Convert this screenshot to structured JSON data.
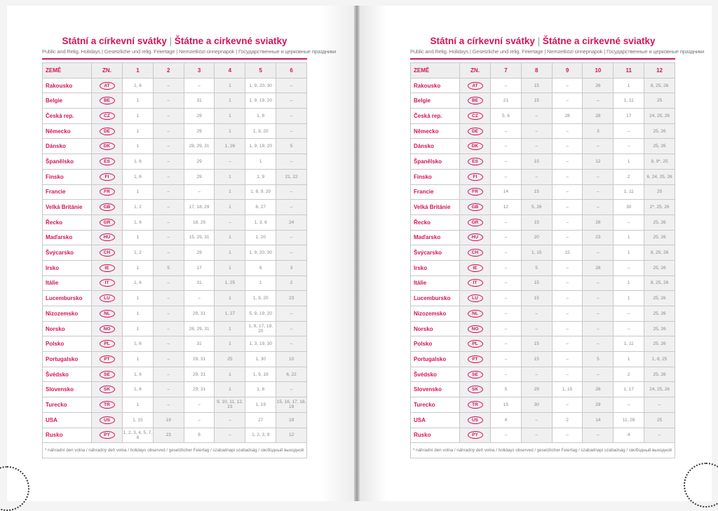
{
  "title_cz": "Státní a církevní svátky",
  "title_sk": "Štátne a cirkevné sviatky",
  "subtitle": "Public and Relig. Holidays | Gesetzliche und relig. Feiertage | Nemzetközi ünnepnapok | Государственные и церковные праздники",
  "footnote": "* náhradní den volna / náhradný deň volna / holidays observed / gesetzlicher Feiertag / szabadnapi szabadság / свободный выходной",
  "headers": {
    "country": "ZEMĚ",
    "code": "ZN."
  },
  "months_left": [
    "1",
    "2",
    "3",
    "4",
    "5",
    "6"
  ],
  "months_right": [
    "7",
    "8",
    "9",
    "10",
    "11",
    "12"
  ],
  "accent_color": "#d4145a",
  "countries": [
    {
      "name": "Rakousko",
      "code": "AT",
      "left": [
        "1, 6",
        "–",
        "–",
        "1",
        "1, 9, 20, 30",
        "–"
      ],
      "right": [
        "–",
        "15",
        "–",
        "26",
        "1",
        "8, 25, 26"
      ]
    },
    {
      "name": "Belgie",
      "code": "BE",
      "left": [
        "1",
        "–",
        "31",
        "1",
        "1, 9, 19, 20",
        "–"
      ],
      "right": [
        "21",
        "15",
        "–",
        "–",
        "1, 11",
        "25"
      ]
    },
    {
      "name": "Česká rep.",
      "code": "CZ",
      "left": [
        "1",
        "–",
        "29",
        "1",
        "1, 8",
        "–"
      ],
      "right": [
        "5, 6",
        "–",
        "28",
        "28",
        "17",
        "24, 25, 26"
      ]
    },
    {
      "name": "Německo",
      "code": "DE",
      "left": [
        "1",
        "–",
        "29",
        "1",
        "1, 9, 20",
        "–"
      ],
      "right": [
        "–",
        "–",
        "–",
        "3",
        "–",
        "25, 26"
      ]
    },
    {
      "name": "Dánsko",
      "code": "DK",
      "left": [
        "1",
        "–",
        "28, 29, 31",
        "1, 26",
        "1, 9, 19, 20",
        "5"
      ],
      "right": [
        "–",
        "–",
        "–",
        "–",
        "–",
        "25, 26"
      ]
    },
    {
      "name": "Španělsko",
      "code": "ES",
      "left": [
        "1, 6",
        "–",
        "29",
        "–",
        "1",
        "–"
      ],
      "right": [
        "–",
        "15",
        "–",
        "12",
        "1",
        "8, 9*, 25"
      ]
    },
    {
      "name": "Finsko",
      "code": "FI",
      "left": [
        "1, 6",
        "–",
        "29",
        "1",
        "1, 9",
        "21, 22"
      ],
      "right": [
        "–",
        "–",
        "–",
        "–",
        "2",
        "6, 24, 25, 26"
      ]
    },
    {
      "name": "Francie",
      "code": "FR",
      "left": [
        "1",
        "–",
        "–",
        "1",
        "1, 8, 9, 20",
        "–"
      ],
      "right": [
        "14",
        "15",
        "–",
        "–",
        "1, 11",
        "25"
      ]
    },
    {
      "name": "Velká Británie",
      "code": "GB",
      "left": [
        "1, 2",
        "–",
        "17, 18, 29",
        "1",
        "6, 27",
        "–"
      ],
      "right": [
        "12",
        "5, 26",
        "–",
        "–",
        "30",
        "2*, 25, 26"
      ]
    },
    {
      "name": "Řecko",
      "code": "GR",
      "left": [
        "1, 6",
        "–",
        "18, 25",
        "–",
        "1, 3, 6",
        "24"
      ],
      "right": [
        "–",
        "15",
        "–",
        "28",
        "–",
        "25, 26"
      ]
    },
    {
      "name": "Maďarsko",
      "code": "HU",
      "left": [
        "1",
        "–",
        "15, 29, 31",
        "1",
        "1, 20",
        "–"
      ],
      "right": [
        "–",
        "20",
        "–",
        "23",
        "1",
        "25, 26"
      ]
    },
    {
      "name": "Švýcarsko",
      "code": "CH",
      "left": [
        "1, 2",
        "–",
        "29",
        "1",
        "1, 9, 20, 30",
        "–"
      ],
      "right": [
        "–",
        "1, 15",
        "15",
        "–",
        "1",
        "8, 25, 26"
      ]
    },
    {
      "name": "Irsko",
      "code": "IE",
      "left": [
        "1",
        "5",
        "17",
        "1",
        "6",
        "3"
      ],
      "right": [
        "–",
        "5",
        "–",
        "28",
        "–",
        "25, 26"
      ]
    },
    {
      "name": "Itálie",
      "code": "IT",
      "left": [
        "1, 6",
        "–",
        "31",
        "1, 25",
        "1",
        "2"
      ],
      "right": [
        "–",
        "15",
        "–",
        "–",
        "1",
        "8, 25, 26"
      ]
    },
    {
      "name": "Lucembursko",
      "code": "LU",
      "left": [
        "1",
        "–",
        "–",
        "1",
        "1, 9, 20",
        "23"
      ],
      "right": [
        "–",
        "15",
        "–",
        "–",
        "1",
        "25, 26"
      ]
    },
    {
      "name": "Nizozemsko",
      "code": "NL",
      "left": [
        "1",
        "–",
        "29, 31",
        "1, 27",
        "5, 9, 19, 20",
        "–"
      ],
      "right": [
        "–",
        "–",
        "–",
        "–",
        "–",
        "25, 26"
      ]
    },
    {
      "name": "Norsko",
      "code": "NO",
      "left": [
        "1",
        "–",
        "28, 29, 31",
        "1",
        "1, 9, 17, 19, 20",
        "–"
      ],
      "right": [
        "–",
        "–",
        "–",
        "–",
        "–",
        "25, 26"
      ]
    },
    {
      "name": "Polsko",
      "code": "PL",
      "left": [
        "1, 6",
        "–",
        "31",
        "1",
        "1, 3, 19, 30",
        "–"
      ],
      "right": [
        "–",
        "15",
        "–",
        "–",
        "1, 11",
        "25, 26"
      ]
    },
    {
      "name": "Portugalsko",
      "code": "PT",
      "left": [
        "1",
        "–",
        "29, 31",
        "25",
        "1, 30",
        "10"
      ],
      "right": [
        "–",
        "15",
        "–",
        "5",
        "1",
        "1, 8, 25"
      ]
    },
    {
      "name": "Švédsko",
      "code": "SE",
      "left": [
        "1, 6",
        "–",
        "29, 31",
        "1",
        "1, 9, 19",
        "6, 22"
      ],
      "right": [
        "–",
        "–",
        "–",
        "–",
        "2",
        "25, 26"
      ]
    },
    {
      "name": "Slovensko",
      "code": "SK",
      "left": [
        "1, 6",
        "–",
        "29, 31",
        "1",
        "1, 8",
        "–"
      ],
      "right": [
        "5",
        "29",
        "1, 15",
        "28",
        "1, 17",
        "24, 25, 26"
      ]
    },
    {
      "name": "Turecko",
      "code": "TR",
      "left": [
        "1",
        "–",
        "–",
        "9, 10, 11, 12, 23",
        "1, 19",
        "15, 16, 17, 18, 19"
      ],
      "right": [
        "15",
        "30",
        "–",
        "29",
        "–",
        "–"
      ]
    },
    {
      "name": "USA",
      "code": "US",
      "left": [
        "1, 15",
        "19",
        "–",
        "–",
        "27",
        "19"
      ],
      "right": [
        "4",
        "–",
        "2",
        "14",
        "11, 28",
        "25"
      ]
    },
    {
      "name": "Rusko",
      "code": "PY",
      "left": [
        "1, 2, 3, 4, 5, 7, 8",
        "23",
        "8",
        "–",
        "1, 2, 3, 9",
        "12"
      ],
      "right": [
        "–",
        "–",
        "–",
        "–",
        "4",
        "–"
      ]
    }
  ]
}
